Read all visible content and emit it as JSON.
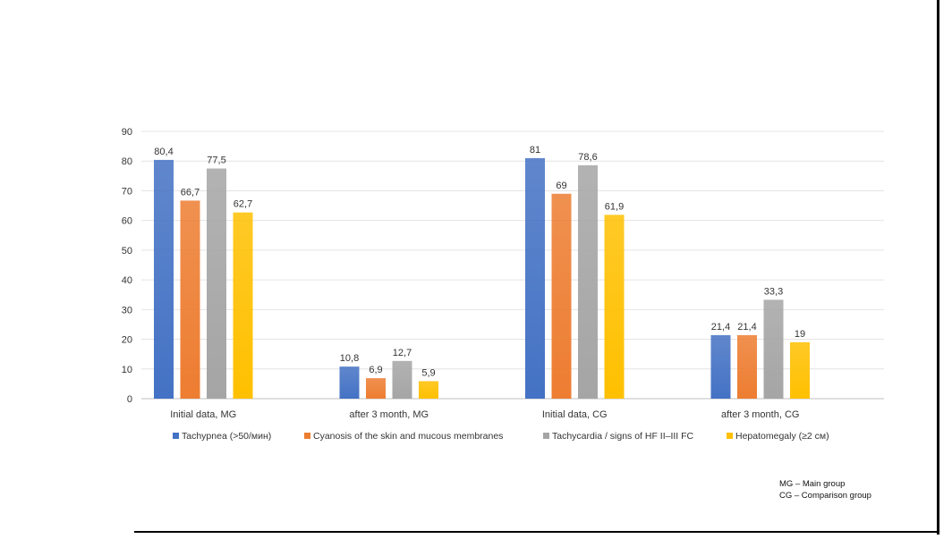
{
  "chart_data": {
    "type": "bar",
    "categories": [
      "Initial data, MG",
      "after 3 month, MG",
      "Initial data, CG",
      "after 3 month, CG"
    ],
    "series": [
      {
        "name": "Tachypnea (>50/мин)",
        "values": [
          80.4,
          10.8,
          81,
          21.4
        ],
        "labels": [
          "80,4",
          "10,8",
          "81",
          "21,4"
        ],
        "color": "#4472c4"
      },
      {
        "name": "Cyanosis of the skin and mucous membranes",
        "values": [
          66.7,
          6.9,
          69,
          21.4
        ],
        "labels": [
          "66,7",
          "6,9",
          "69",
          "21,4"
        ],
        "color": "#ed7d31"
      },
      {
        "name": "Tachycardia / signs of HF II–III FC",
        "values": [
          77.5,
          12.7,
          78.6,
          33.3
        ],
        "labels": [
          "77,5",
          "12,7",
          "78,6",
          "33,3"
        ],
        "color": "#a5a5a5"
      },
      {
        "name": "Hepatomegaly (≥2 см)",
        "values": [
          62.7,
          5.9,
          61.9,
          19
        ],
        "labels": [
          "62,7",
          "5,9",
          "61,9",
          "19"
        ],
        "color": "#ffc000"
      }
    ],
    "ylim": [
      0,
      90
    ],
    "yticks": [
      0,
      10,
      20,
      30,
      40,
      50,
      60,
      70,
      80,
      90
    ],
    "grid": true,
    "legend_position": "bottom"
  },
  "footnotes": {
    "mg": "MG – Main group",
    "cg": "CG – Comparison group"
  }
}
